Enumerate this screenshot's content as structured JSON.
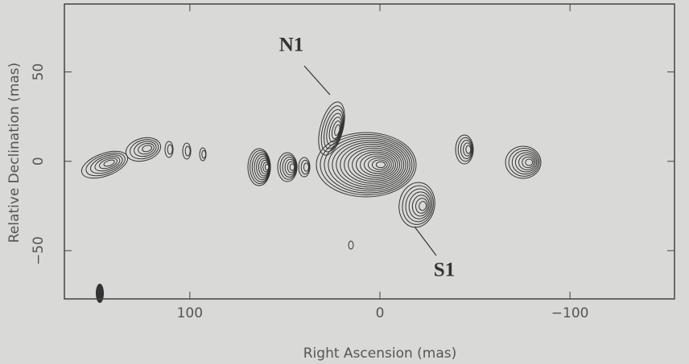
{
  "chart_data": {
    "type": "contour",
    "xlabel": "Right Ascension  (mas)",
    "ylabel": "Relative Declination  (mas)",
    "xlim": [
      166,
      -155
    ],
    "ylim": [
      -77,
      88
    ],
    "xticks": [
      100,
      0,
      {
        "value": -100,
        "label": "−100"
      }
    ],
    "yticks": [
      {
        "value": -50,
        "label": "−50"
      },
      0,
      50
    ],
    "annotations": [
      "N1",
      "S1"
    ]
  }
}
